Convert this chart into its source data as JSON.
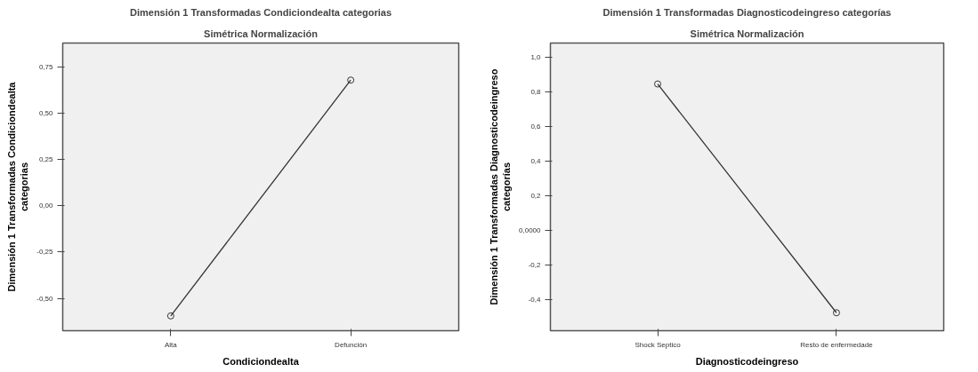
{
  "chart_data": [
    {
      "type": "line",
      "title": "Dimensión 1 Transformadas Condiciondealta categorias",
      "subtitle": "Simétrica Normalización",
      "xlabel": "Condiciondealta",
      "ylabel": "Dimensión 1 Transformadas Condiciondealta categorias",
      "categories": [
        "Alta",
        "Defunción"
      ],
      "series": [
        {
          "color": "#333333",
          "values": [
            -0.595,
            0.679
          ]
        }
      ],
      "ylim": [
        -0.675,
        0.879
      ],
      "yticks": [
        {
          "value": -0.5,
          "label": "-0,50"
        },
        {
          "value": -0.25,
          "label": "-0,25"
        },
        {
          "value": 0,
          "label": "0,00"
        },
        {
          "value": 0.25,
          "label": "0,25"
        },
        {
          "value": 0.5,
          "label": "0,50"
        },
        {
          "value": 0.75,
          "label": "0,75"
        }
      ],
      "grid": false,
      "marker": "circle",
      "line_style": "solid"
    },
    {
      "type": "line",
      "title": "Dimensión 1 Transformadas Diagnosticodeingreso categorías",
      "subtitle": "Simétrica Normalización",
      "xlabel": "Diagnosticodeingreso",
      "ylabel": "Dimensión 1 Transformadas Diagnosticodeingreso categorías",
      "categories": [
        "Shock Septico",
        "Resto de enfermedade"
      ],
      "series": [
        {
          "color": "#333333",
          "values": [
            0.847,
            -0.478
          ]
        }
      ],
      "ylim": [
        -0.582,
        1.084
      ],
      "yticks": [
        {
          "value": -0.4,
          "label": "-0,4"
        },
        {
          "value": -0.2,
          "label": "-0,2"
        },
        {
          "value": 0,
          "label": "0,0000"
        },
        {
          "value": 0.2,
          "label": "0,2"
        },
        {
          "value": 0.4,
          "label": "0,4"
        },
        {
          "value": 0.6,
          "label": "0,6"
        },
        {
          "value": 0.8,
          "label": "0,8"
        },
        {
          "value": 1.0,
          "label": "1,0"
        }
      ],
      "grid": false,
      "marker": "circle",
      "line_style": "solid"
    }
  ]
}
